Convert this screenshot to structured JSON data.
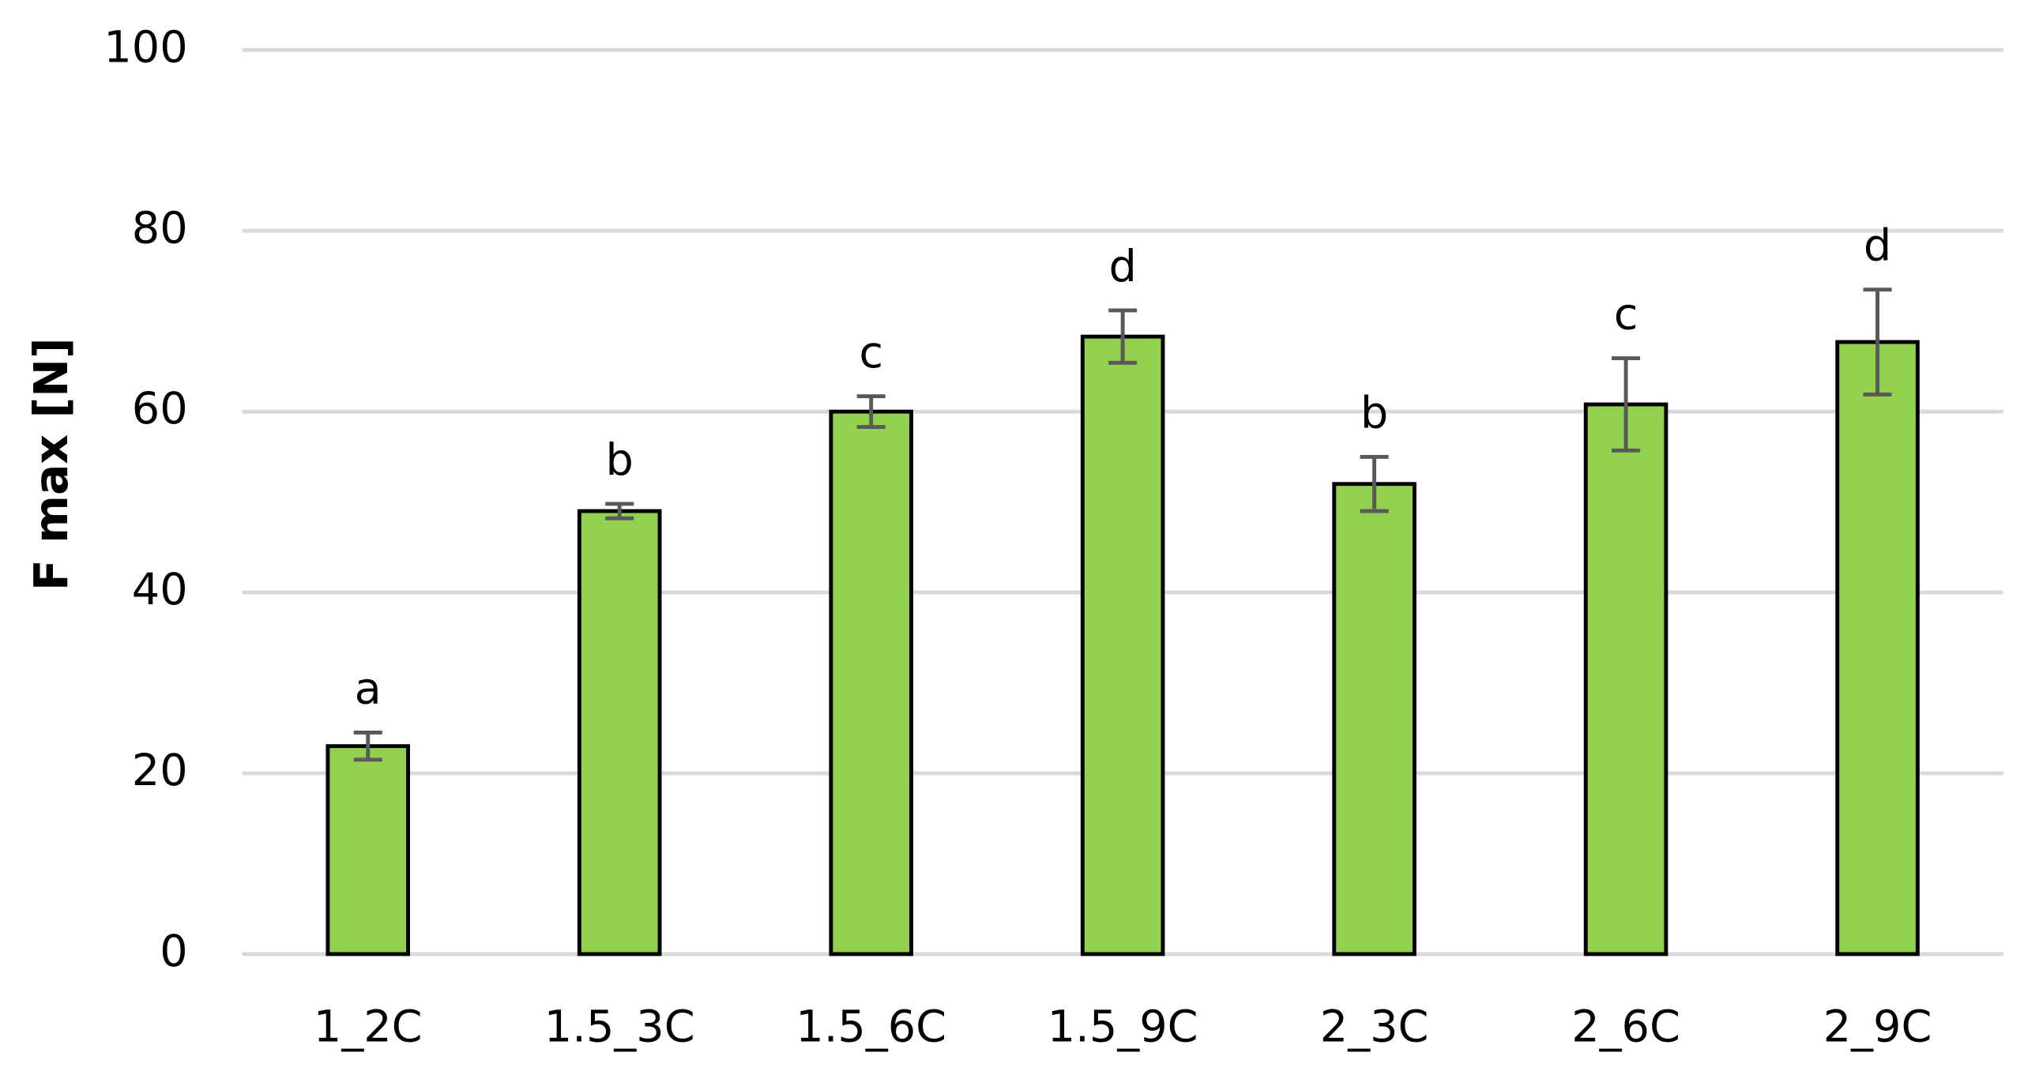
{
  "chart_data": {
    "type": "bar",
    "y_label": "F max [N]",
    "categories": [
      "1_2C",
      "1.5_3C",
      "1.5_6C",
      "1.5_9C",
      "2_3C",
      "2_6C",
      "2_9C"
    ],
    "values": [
      23,
      49,
      60,
      68.3,
      52,
      60.8,
      67.7
    ],
    "errors": [
      1.5,
      0.8,
      1.7,
      2.9,
      3,
      5.1,
      5.8
    ],
    "annotations": [
      "a",
      "b",
      "c",
      "d",
      "b",
      "c",
      "d"
    ],
    "color": "#92d050",
    "error_color": "#595959",
    "ylim": [
      0,
      100
    ],
    "yticks": [
      0,
      20,
      40,
      60,
      80,
      100
    ],
    "grid": true
  }
}
